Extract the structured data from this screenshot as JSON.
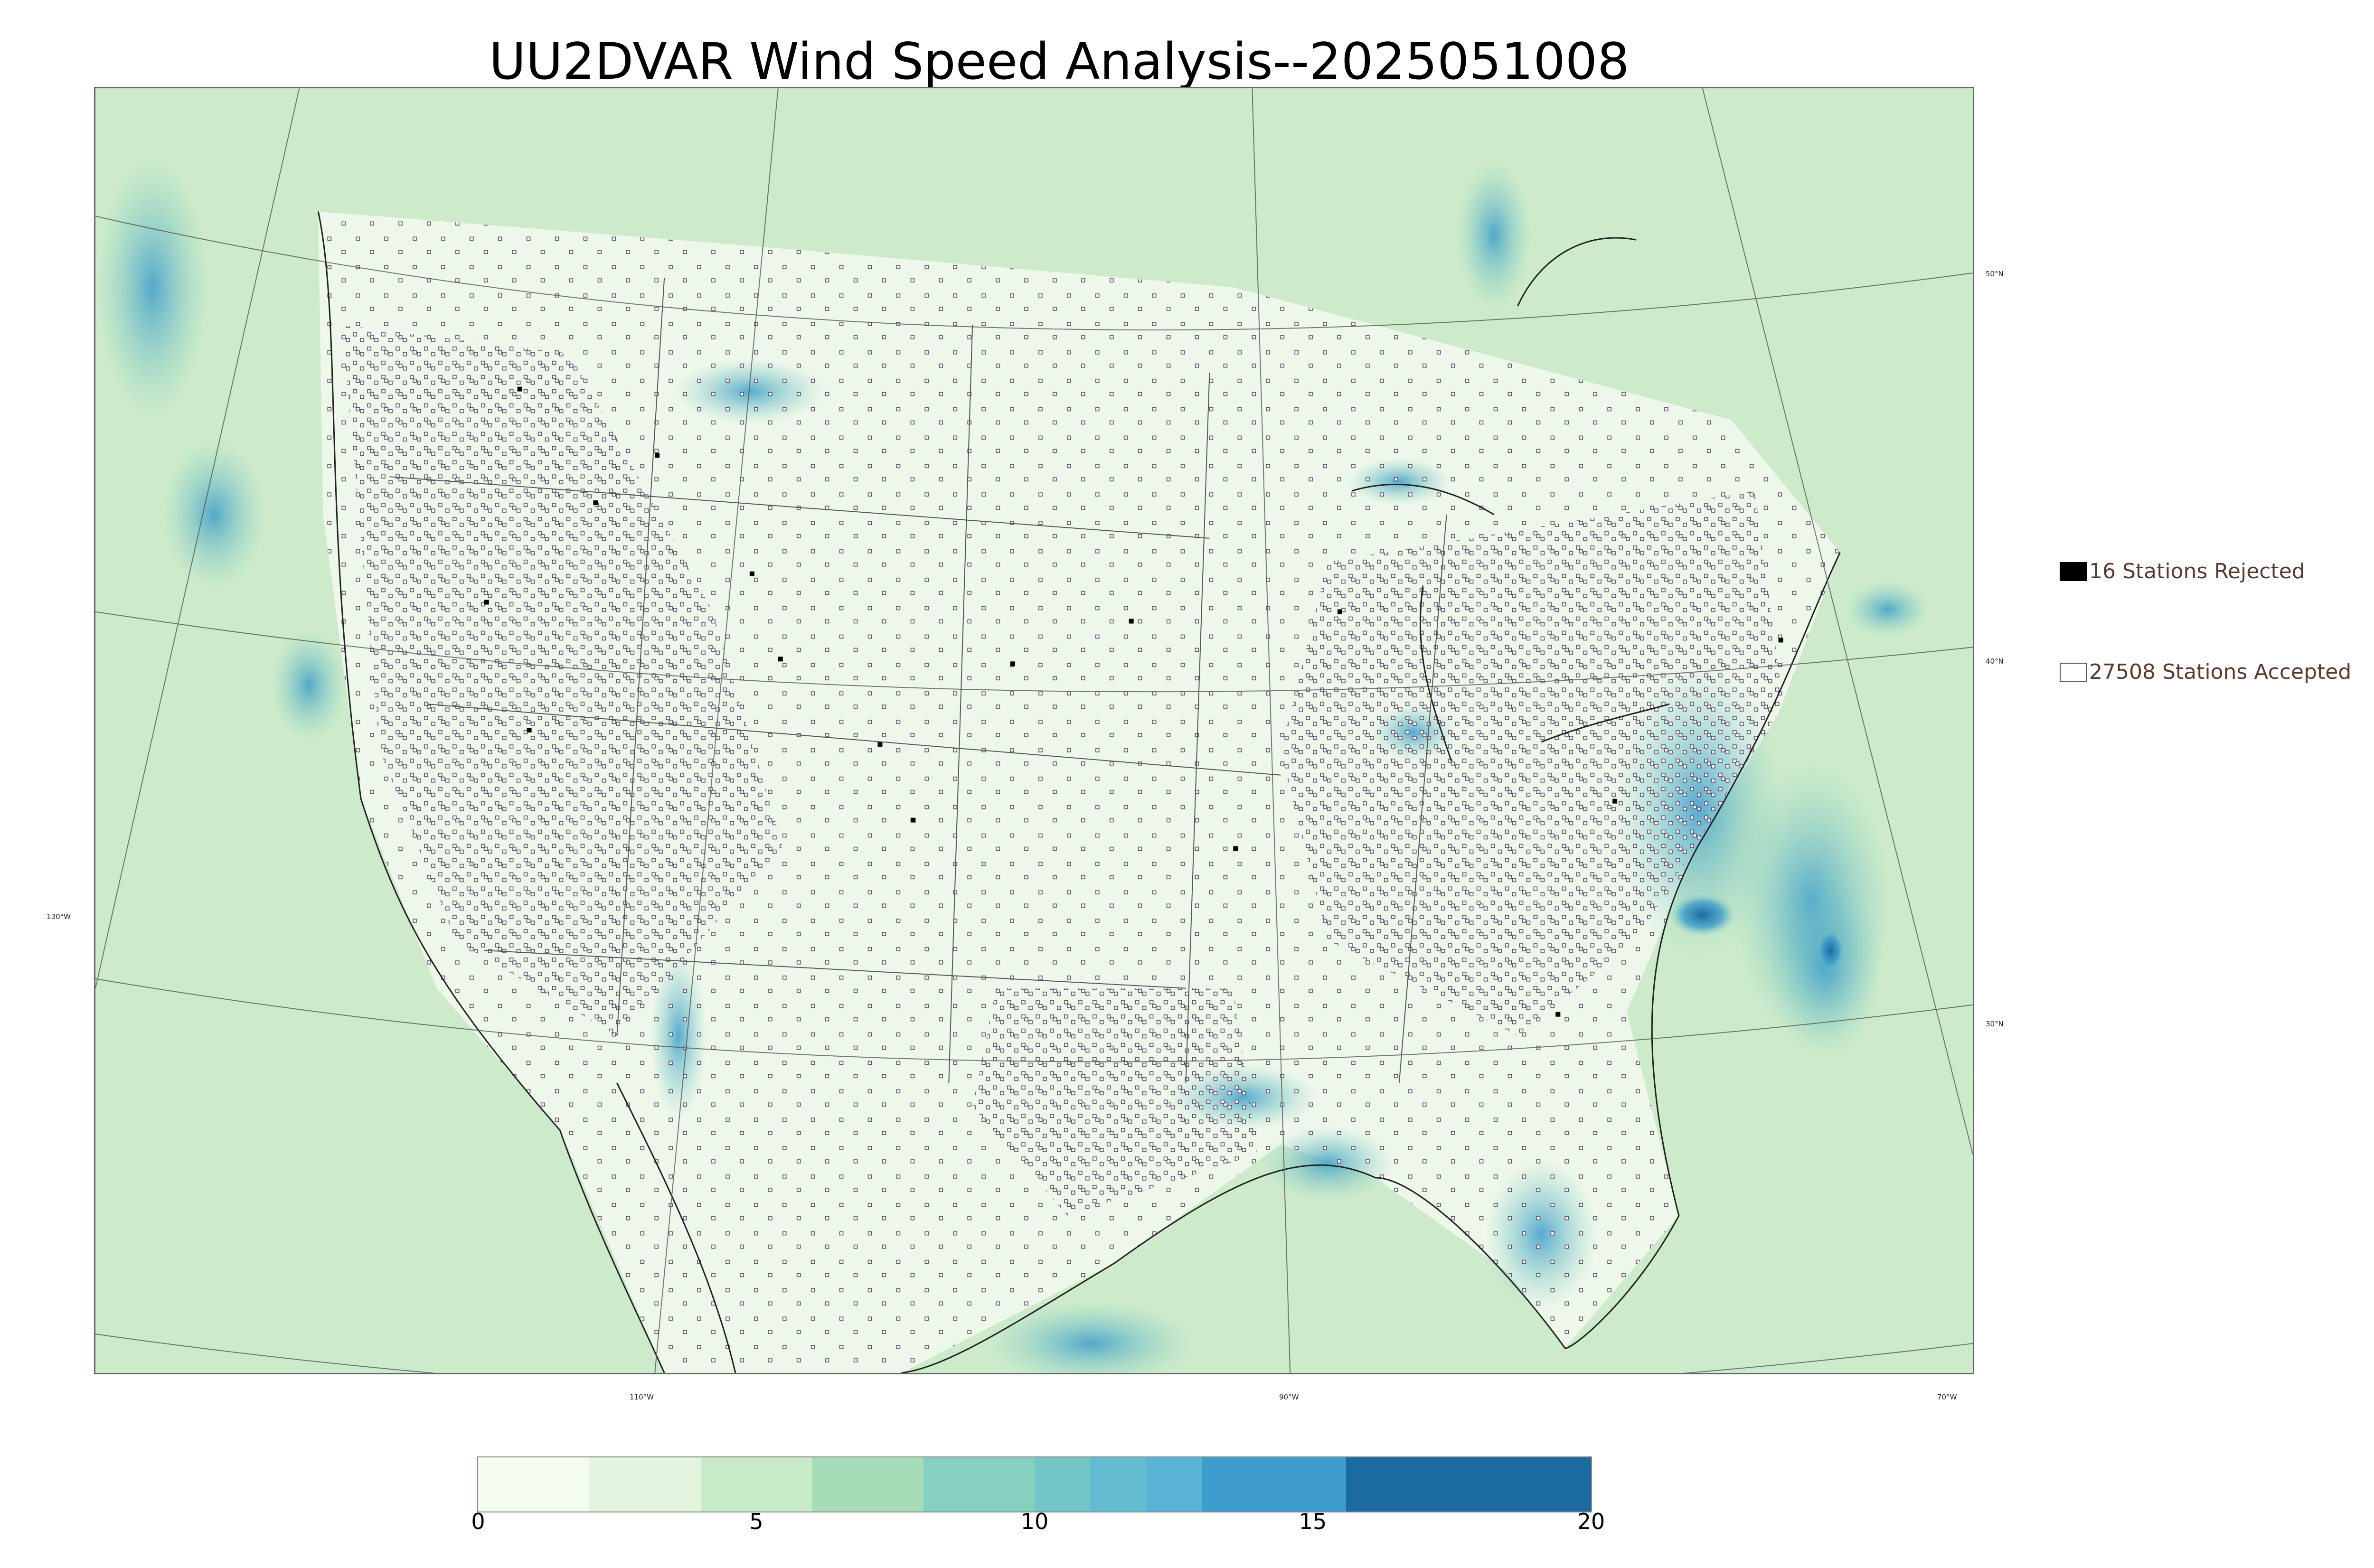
{
  "title": "UU2DVAR Wind Speed Analysis--2025051008",
  "legend": {
    "rejected": {
      "label": "16 Stations Rejected",
      "count": 16,
      "fill": "#000000"
    },
    "accepted": {
      "label": "27508 Stations Accepted",
      "count": 27508,
      "fill": "#ffffff"
    }
  },
  "axes": {
    "longitude_labels": [
      "130°W",
      "110°W",
      "90°W",
      "70°W"
    ],
    "latitude_labels": [
      "50°N",
      "40°N",
      "30°N"
    ]
  },
  "colorbar": {
    "ticks": [
      "0",
      "5",
      "10",
      "15",
      "20"
    ],
    "min": 0,
    "max": 20,
    "bands": [
      {
        "from": 0,
        "to": 2,
        "color": "#f4fbf1"
      },
      {
        "from": 2,
        "to": 4,
        "color": "#e3f4df"
      },
      {
        "from": 4,
        "to": 6,
        "color": "#c8eac6"
      },
      {
        "from": 6,
        "to": 8,
        "color": "#a7dcb8"
      },
      {
        "from": 8,
        "to": 10,
        "color": "#86d0c0"
      },
      {
        "from": 10,
        "to": 11,
        "color": "#73c6c6"
      },
      {
        "from": 11,
        "to": 12,
        "color": "#63bcd0"
      },
      {
        "from": 12,
        "to": 13,
        "color": "#59b3d6"
      },
      {
        "from": 13,
        "to": 15.6,
        "color": "#3d9ccb"
      },
      {
        "from": 15.6,
        "to": 20,
        "color": "#1c6aa2"
      }
    ]
  }
}
